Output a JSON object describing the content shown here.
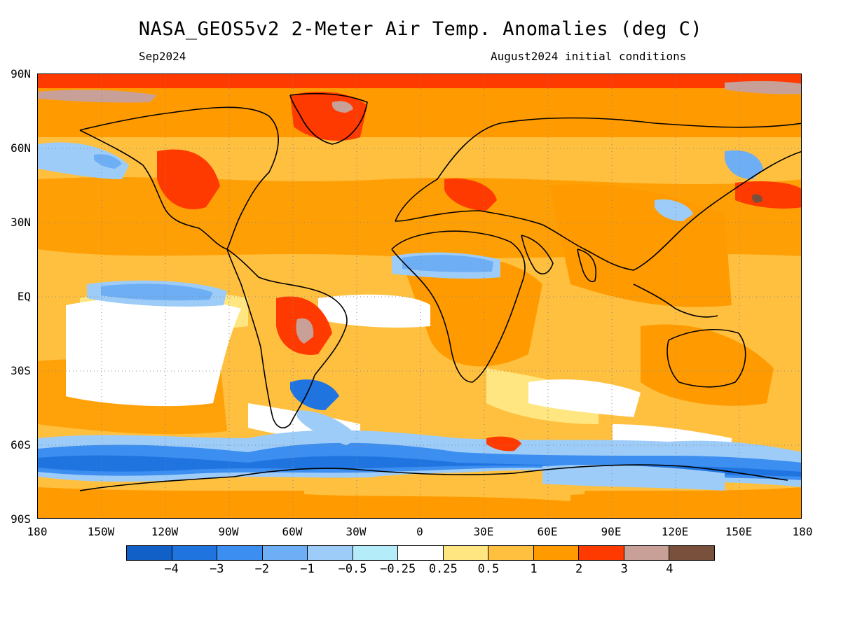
{
  "title": "NASA_GEOS5v2 2-Meter Air Temp. Anomalies (deg C)",
  "subtitle_left": "Sep2024",
  "subtitle_right": "August2024 initial conditions",
  "lat_labels": [
    "90N",
    "60N",
    "30N",
    "EQ",
    "30S",
    "60S",
    "90S"
  ],
  "lon_labels": [
    "180",
    "150W",
    "120W",
    "90W",
    "60W",
    "30W",
    "0",
    "30E",
    "60E",
    "90E",
    "120E",
    "150E",
    "180"
  ],
  "legend": {
    "colors": [
      "#1160c8",
      "#1f74e0",
      "#3c8ef0",
      "#6eaef5",
      "#9dccf8",
      "#b4ecfa",
      "#ffffff",
      "#ffe680",
      "#ffc040",
      "#ff9b00",
      "#ff3a00",
      "#c8a098",
      "#78503c"
    ],
    "tick_labels": [
      "-4",
      "-3",
      "-2",
      "-1",
      "-0.5",
      "-0.25",
      "0.25",
      "0.5",
      "1",
      "2",
      "3",
      "4"
    ]
  }
}
